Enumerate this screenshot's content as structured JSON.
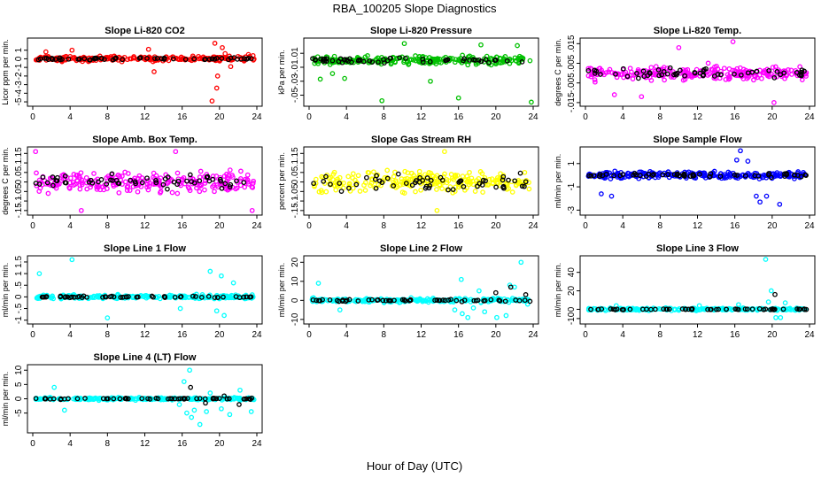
{
  "figure": {
    "title": "RBA_100205  Slope Diagnostics",
    "xlabel": "Hour of Day (UTC)"
  },
  "chart_data": [
    {
      "type": "scatter",
      "title": "Slope Li-820 CO2",
      "ylabel": "Licor ppm per min.",
      "xlim": [
        0,
        24
      ],
      "ylim": [
        -5.2,
        2.1
      ],
      "yticks": [
        -5,
        -4,
        -3,
        -2,
        -1,
        0,
        1
      ],
      "xticks": [
        0,
        4,
        8,
        12,
        16,
        20,
        24
      ],
      "series": [
        {
          "color": "#ff0000",
          "spread": 0.45,
          "points": [
            [
              1.4,
              0.8
            ],
            [
              4.2,
              1.0
            ],
            [
              12.4,
              1.1
            ],
            [
              13.0,
              -1.5
            ],
            [
              19.5,
              1.8
            ],
            [
              19.8,
              -2.0
            ],
            [
              20.3,
              1.3
            ],
            [
              20.6,
              0.6
            ],
            [
              21.2,
              -0.9
            ],
            [
              19.7,
              -3.4
            ],
            [
              19.2,
              -4.9
            ],
            [
              23.1,
              0.5
            ]
          ]
        },
        {
          "color": "#000000",
          "spread": 0.2,
          "points": []
        }
      ]
    },
    {
      "type": "scatter",
      "title": "Slope Li-820 Pressure",
      "ylabel": "kPa per min.",
      "xlim": [
        0,
        24
      ],
      "ylim": [
        -0.062,
        0.028
      ],
      "yticks": [
        -0.05,
        -0.03,
        -0.01,
        0.01
      ],
      "xticks": [
        0,
        4,
        8,
        12,
        16,
        20,
        24
      ],
      "series": [
        {
          "color": "#00c000",
          "spread": 0.009,
          "points": [
            [
              1.2,
              -0.027
            ],
            [
              2.5,
              -0.019
            ],
            [
              10.2,
              0.024
            ],
            [
              16.0,
              -0.054
            ],
            [
              22.3,
              0.021
            ],
            [
              23.8,
              -0.06
            ],
            [
              7.8,
              -0.058
            ],
            [
              13.0,
              -0.03
            ],
            [
              3.8,
              -0.026
            ],
            [
              18.4,
              0.022
            ]
          ]
        },
        {
          "color": "#000000",
          "spread": 0.005,
          "points": []
        }
      ]
    },
    {
      "type": "scatter",
      "title": "Slope Li-820 Temp.",
      "ylabel": "degrees C per min.",
      "xlim": [
        0,
        24
      ],
      "ylim": [
        -0.0155,
        0.0165
      ],
      "yticks": [
        -0.015,
        -0.005,
        0.005,
        0.015
      ],
      "xticks": [
        0,
        4,
        8,
        12,
        16,
        20,
        24
      ],
      "series": [
        {
          "color": "#ff00ff",
          "spread": 0.0055,
          "points": [
            [
              15.8,
              0.016
            ],
            [
              6.0,
              -0.012
            ],
            [
              20.2,
              -0.015
            ],
            [
              10.0,
              0.013
            ],
            [
              3.1,
              -0.011
            ]
          ]
        },
        {
          "color": "#000000",
          "spread": 0.0035,
          "points": []
        }
      ]
    },
    {
      "type": "scatter",
      "title": "Slope Amb. Box Temp.",
      "ylabel": "degrees C per min.",
      "xlim": [
        0,
        24
      ],
      "ylim": [
        -0.16,
        0.17
      ],
      "yticks": [
        -0.15,
        -0.1,
        -0.05,
        0.0,
        0.05,
        0.1,
        0.15
      ],
      "xticks": [
        0,
        4,
        8,
        12,
        16,
        20,
        24
      ],
      "series": [
        {
          "color": "#ff00ff",
          "spread": 0.075,
          "points": [
            [
              0.3,
              0.16
            ],
            [
              5.2,
              -0.15
            ],
            [
              15.3,
              0.16
            ],
            [
              23.5,
              -0.15
            ]
          ]
        },
        {
          "color": "#000000",
          "spread": 0.06,
          "points": []
        }
      ]
    },
    {
      "type": "scatter",
      "title": "Slope Gas Stream RH",
      "ylabel": "percent per min.",
      "xlim": [
        0,
        24
      ],
      "ylim": [
        -0.16,
        0.17
      ],
      "yticks": [
        -0.15,
        -0.1,
        -0.05,
        0.0,
        0.05,
        0.1,
        0.15
      ],
      "xticks": [
        0,
        4,
        8,
        12,
        16,
        20,
        24
      ],
      "series": [
        {
          "color": "#ffff00",
          "spread": 0.075,
          "points": [
            [
              14.5,
              0.16
            ],
            [
              13.7,
              -0.15
            ]
          ]
        },
        {
          "color": "#000000",
          "spread": 0.06,
          "points": []
        }
      ]
    },
    {
      "type": "scatter",
      "title": "Slope Sample Flow",
      "ylabel": "ml/min per min.",
      "xlim": [
        0,
        24
      ],
      "ylim": [
        -3.2,
        2.2
      ],
      "yticks": [
        -3,
        -1,
        1
      ],
      "xticks": [
        0,
        4,
        8,
        12,
        16,
        20,
        24
      ],
      "series": [
        {
          "color": "#0000ff",
          "spread": 0.4,
          "points": [
            [
              16.6,
              2.1
            ],
            [
              1.7,
              -1.6
            ],
            [
              2.8,
              -1.8
            ],
            [
              18.3,
              -1.8
            ],
            [
              18.7,
              -2.3
            ],
            [
              19.4,
              -1.8
            ],
            [
              20.8,
              -2.5
            ],
            [
              17.4,
              1.2
            ],
            [
              16.2,
              1.3
            ]
          ]
        },
        {
          "color": "#000000",
          "spread": 0.2,
          "points": []
        }
      ]
    },
    {
      "type": "scatter",
      "title": "Slope Line 1 Flow",
      "ylabel": "ml/min per min.",
      "xlim": [
        0,
        24
      ],
      "ylim": [
        -1.05,
        1.65
      ],
      "yticks": [
        -1,
        -0.5,
        0,
        0.5,
        1,
        1.5
      ],
      "xticks": [
        0,
        4,
        8,
        12,
        16,
        20,
        24
      ],
      "series": [
        {
          "color": "#00ffff",
          "spread": 0.12,
          "points": [
            [
              4.2,
              1.6
            ],
            [
              0.7,
              1.0
            ],
            [
              8.0,
              -0.9
            ],
            [
              19.0,
              1.1
            ],
            [
              20.2,
              0.9
            ],
            [
              20.5,
              -0.8
            ],
            [
              19.7,
              -0.6
            ],
            [
              15.8,
              -0.5
            ],
            [
              21.5,
              0.6
            ]
          ]
        },
        {
          "color": "#000000",
          "spread": 0.05,
          "points": []
        }
      ]
    },
    {
      "type": "scatter",
      "title": "Slope Line 2 Flow",
      "ylabel": "ml/min per min.",
      "xlim": [
        0,
        24
      ],
      "ylim": [
        -11,
        22
      ],
      "yticks": [
        -10,
        0,
        10,
        20
      ],
      "xticks": [
        0,
        4,
        8,
        12,
        16,
        20,
        24
      ],
      "series": [
        {
          "color": "#00ffff",
          "spread": 1.5,
          "points": [
            [
              16.3,
              11
            ],
            [
              15.6,
              -5
            ],
            [
              16.4,
              -7
            ],
            [
              17.0,
              -9
            ],
            [
              17.6,
              -4
            ],
            [
              20.1,
              -9
            ],
            [
              22.7,
              20
            ],
            [
              21.5,
              8
            ],
            [
              22.0,
              7
            ],
            [
              23.4,
              -2
            ],
            [
              1.0,
              9
            ],
            [
              3.3,
              -5
            ],
            [
              18.2,
              5
            ],
            [
              18.8,
              -6
            ],
            [
              21.1,
              -8
            ]
          ]
        },
        {
          "color": "#000000",
          "spread": 0.8,
          "points": [
            [
              20.0,
              4
            ],
            [
              21.6,
              7
            ],
            [
              23.2,
              3
            ]
          ]
        }
      ]
    },
    {
      "type": "scatter",
      "title": "Slope Line 3 Flow",
      "ylabel": "ml/min per min.",
      "xlim": [
        0,
        24
      ],
      "ylim": [
        -13,
        55
      ],
      "yticks": [
        -10,
        0,
        20,
        40
      ],
      "xticks": [
        0,
        4,
        8,
        12,
        16,
        20,
        24
      ],
      "series": [
        {
          "color": "#00ffff",
          "spread": 1.8,
          "points": [
            [
              19.3,
              54
            ],
            [
              19.9,
              20
            ],
            [
              20.4,
              -9
            ],
            [
              20.9,
              -9
            ],
            [
              19.6,
              8
            ],
            [
              21.4,
              7
            ],
            [
              12.2,
              4
            ],
            [
              3.3,
              4
            ],
            [
              16.4,
              5
            ]
          ]
        },
        {
          "color": "#000000",
          "spread": 0.8,
          "points": [
            [
              20.3,
              16
            ]
          ]
        }
      ]
    },
    {
      "type": "scatter",
      "title": "Slope Line 4 (LT) Flow",
      "ylabel": "ml/min per min.",
      "xlim": [
        0,
        24
      ],
      "ylim": [
        -11,
        11
      ],
      "yticks": [
        -5,
        0,
        5,
        10
      ],
      "xticks": [
        0,
        4,
        8,
        12,
        16,
        20,
        24
      ],
      "series": [
        {
          "color": "#00ffff",
          "spread": 0.6,
          "points": [
            [
              16.8,
              10
            ],
            [
              16.2,
              6
            ],
            [
              2.3,
              4
            ],
            [
              3.4,
              -4
            ],
            [
              16.5,
              -5
            ],
            [
              17.0,
              -6.5
            ],
            [
              17.3,
              -4
            ],
            [
              17.9,
              -9
            ],
            [
              18.6,
              -4.5
            ],
            [
              21.1,
              -5.5
            ],
            [
              22.2,
              3
            ],
            [
              23.4,
              -4.5
            ],
            [
              15.7,
              -2
            ],
            [
              19.0,
              2
            ],
            [
              20.2,
              -3.5
            ]
          ]
        },
        {
          "color": "#000000",
          "spread": 0.3,
          "points": [
            [
              16.9,
              4
            ],
            [
              18.5,
              -1.5
            ],
            [
              20.5,
              1
            ],
            [
              22.1,
              -2
            ]
          ]
        }
      ]
    }
  ]
}
